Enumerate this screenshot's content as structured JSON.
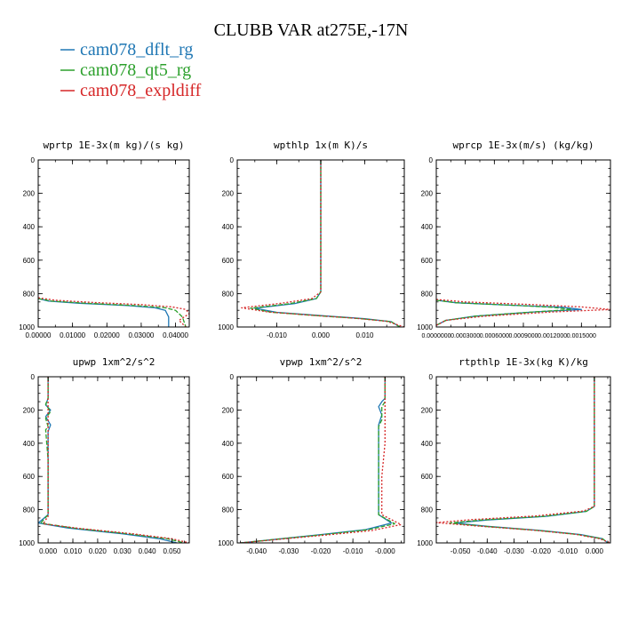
{
  "title": "CLUBB VAR at275E,-17N",
  "legend": [
    {
      "name": "cam078_dflt_rg",
      "color": "#1f77b4",
      "dash": "solid"
    },
    {
      "name": "cam078_qt5_rg",
      "color": "#2ca02c",
      "dash": "dashed"
    },
    {
      "name": "cam078_expldiff",
      "color": "#d62728",
      "dash": "dotted"
    }
  ],
  "chart_data": [
    {
      "type": "line",
      "title": "wprtp  1E-3x(m kg)/(s kg)",
      "xlim": [
        0,
        0.044
      ],
      "ylim": [
        1000,
        0
      ],
      "xticks": [
        0,
        0.01,
        0.02,
        0.03,
        0.04
      ],
      "xtick_labels": [
        "0.00000",
        "0.01000",
        "0.02000",
        "0.03000",
        "0.04000"
      ],
      "yticks": [
        0,
        200,
        400,
        600,
        800,
        1000
      ],
      "grid": false,
      "series": [
        {
          "name": "cam078_dflt_rg",
          "x": [
            0,
            0.003,
            0.012,
            0.026,
            0.034,
            0.037,
            0.038,
            0.038
          ],
          "y": [
            830,
            845,
            858,
            872,
            885,
            900,
            940,
            1000
          ]
        },
        {
          "name": "cam078_qt5_rg",
          "x": [
            0,
            0.004,
            0.014,
            0.028,
            0.037,
            0.04,
            0.042,
            0.043
          ],
          "y": [
            830,
            845,
            858,
            872,
            885,
            900,
            940,
            1000
          ]
        },
        {
          "name": "cam078_expldiff",
          "x": [
            0,
            0.005,
            0.016,
            0.03,
            0.039,
            0.043,
            0.044,
            0.041,
            0.043
          ],
          "y": [
            825,
            840,
            853,
            866,
            880,
            895,
            920,
            960,
            1000
          ]
        }
      ]
    },
    {
      "type": "line",
      "title": "wpthlp  1x(m K)/s",
      "xlim": [
        -0.019,
        0.019
      ],
      "ylim": [
        1000,
        0
      ],
      "xticks": [
        -0.01,
        0,
        0.01
      ],
      "xtick_labels": [
        "-0.010",
        "0.000",
        "0.010"
      ],
      "yticks": [
        0,
        200,
        400,
        600,
        800,
        1000
      ],
      "grid": false,
      "series": [
        {
          "name": "cam078_dflt_rg",
          "x": [
            0,
            0,
            0,
            -0.001,
            -0.006,
            -0.015,
            -0.01,
            0.0,
            0.01,
            0.016,
            0.018
          ],
          "y": [
            0,
            400,
            790,
            830,
            860,
            888,
            912,
            932,
            950,
            968,
            1000
          ]
        },
        {
          "name": "cam078_qt5_rg",
          "x": [
            0,
            0,
            0,
            -0.001,
            -0.007,
            -0.016,
            -0.011,
            -0.001,
            0.009,
            0.016,
            0.018
          ],
          "y": [
            0,
            400,
            790,
            830,
            860,
            888,
            912,
            932,
            950,
            968,
            1000
          ]
        },
        {
          "name": "cam078_expldiff",
          "x": [
            0,
            0,
            0,
            -0.002,
            -0.009,
            -0.018,
            -0.012,
            -0.002,
            0.008,
            0.015,
            0.019
          ],
          "y": [
            0,
            400,
            790,
            830,
            858,
            885,
            910,
            930,
            948,
            966,
            1000
          ]
        }
      ]
    },
    {
      "type": "line",
      "title": "wprcp  1E-3x(m/s) (kg/kg)",
      "xlim": [
        0,
        0.0018
      ],
      "ylim": [
        1000,
        0
      ],
      "xticks": [
        0,
        0.0003,
        0.0006,
        0.0009,
        0.0012,
        0.0015
      ],
      "xtick_labels": [
        "0.0000000",
        "0.0003000",
        "0.0006000",
        "0.0009000",
        "0.0012000",
        "0.0015000"
      ],
      "yticks": [
        0,
        200,
        400,
        600,
        800,
        1000
      ],
      "grid": false,
      "series": [
        {
          "name": "cam078_dflt_rg",
          "x": [
            0,
            0.0002,
            0.0008,
            0.0013,
            0.0015,
            0.001,
            0.0004,
            0.0001,
            0
          ],
          "y": [
            840,
            855,
            870,
            882,
            895,
            910,
            935,
            960,
            990
          ]
        },
        {
          "name": "cam078_qt5_rg",
          "x": [
            0,
            0.0002,
            0.0008,
            0.0012,
            0.0014,
            0.001,
            0.0004,
            0.0001,
            0
          ],
          "y": [
            840,
            855,
            870,
            882,
            895,
            910,
            935,
            960,
            990
          ]
        },
        {
          "name": "cam078_expldiff",
          "x": [
            0,
            0.0003,
            0.001,
            0.0015,
            0.0018,
            0.0012,
            0.0005,
            0.0001,
            0
          ],
          "y": [
            835,
            850,
            866,
            880,
            895,
            910,
            935,
            960,
            990
          ]
        }
      ]
    },
    {
      "type": "line",
      "title": "upwp  1xm^2/s^2",
      "xlim": [
        -0.004,
        0.057
      ],
      "ylim": [
        1000,
        0
      ],
      "xticks": [
        0,
        0.01,
        0.02,
        0.03,
        0.04,
        0.05
      ],
      "xtick_labels": [
        "0.000",
        "0.010",
        "0.020",
        "0.030",
        "0.040",
        "0.050"
      ],
      "yticks": [
        0,
        200,
        400,
        600,
        800,
        1000
      ],
      "grid": false,
      "series": [
        {
          "name": "cam078_dflt_rg",
          "x": [
            0,
            0,
            -0.001,
            0.001,
            -0.001,
            0.001,
            0,
            0,
            0,
            -0.004,
            0.008,
            0.03,
            0.045,
            0.052
          ],
          "y": [
            0,
            130,
            170,
            200,
            240,
            290,
            330,
            500,
            830,
            880,
            910,
            945,
            975,
            1000
          ]
        },
        {
          "name": "cam078_qt5_rg",
          "x": [
            0,
            0,
            -0.001,
            0.001,
            -0.001,
            0,
            -0.001,
            0,
            0,
            -0.003,
            0.01,
            0.032,
            0.048,
            0.055
          ],
          "y": [
            0,
            130,
            165,
            210,
            250,
            300,
            320,
            500,
            830,
            880,
            910,
            945,
            975,
            1000
          ]
        },
        {
          "name": "cam078_expldiff",
          "x": [
            0,
            0,
            0,
            0,
            0,
            -0.002,
            0.012,
            0.034,
            0.05,
            0.057
          ],
          "y": [
            0,
            200,
            400,
            600,
            840,
            885,
            912,
            945,
            975,
            1000
          ]
        }
      ]
    },
    {
      "type": "line",
      "title": "vpwp  1xm^2/s^2",
      "xlim": [
        -0.046,
        0.006
      ],
      "ylim": [
        1000,
        0
      ],
      "xticks": [
        -0.04,
        -0.03,
        -0.02,
        -0.01,
        0
      ],
      "xtick_labels": [
        "-0.040",
        "-0.030",
        "-0.020",
        "-0.010",
        "-0.000"
      ],
      "yticks": [
        0,
        200,
        400,
        600,
        800,
        1000
      ],
      "grid": false,
      "series": [
        {
          "name": "cam078_dflt_rg",
          "x": [
            0,
            0,
            -0.001,
            -0.002,
            -0.001,
            -0.002,
            -0.002,
            -0.002,
            0.002,
            -0.006,
            -0.02,
            -0.035,
            -0.045
          ],
          "y": [
            0,
            130,
            150,
            180,
            230,
            290,
            320,
            830,
            880,
            920,
            950,
            980,
            1000
          ]
        },
        {
          "name": "cam078_qt5_rg",
          "x": [
            0,
            0,
            -0.001,
            -0.001,
            -0.001,
            -0.002,
            -0.002,
            0.003,
            -0.005,
            -0.019,
            -0.035,
            -0.045
          ],
          "y": [
            0,
            150,
            180,
            220,
            260,
            300,
            830,
            885,
            920,
            950,
            980,
            1000
          ]
        },
        {
          "name": "cam078_expldiff",
          "x": [
            0,
            0,
            0,
            -0.001,
            -0.001,
            0.005,
            -0.004,
            -0.018,
            -0.034,
            -0.045
          ],
          "y": [
            0,
            200,
            400,
            600,
            830,
            890,
            925,
            952,
            980,
            1000
          ]
        }
      ]
    },
    {
      "type": "line",
      "title": "rtpthlp  1E-3x(kg K)/kg",
      "xlim": [
        -0.059,
        0.006
      ],
      "ylim": [
        1000,
        0
      ],
      "xticks": [
        -0.05,
        -0.04,
        -0.03,
        -0.02,
        -0.01,
        0
      ],
      "xtick_labels": [
        "-0.050",
        "-0.040",
        "-0.030",
        "-0.020",
        "-0.010",
        "0.000"
      ],
      "yticks": [
        0,
        200,
        400,
        600,
        800,
        1000
      ],
      "grid": false,
      "series": [
        {
          "name": "cam078_dflt_rg",
          "x": [
            0,
            0,
            0,
            -0.003,
            -0.018,
            -0.04,
            -0.052,
            -0.04,
            -0.02,
            -0.005,
            0.003,
            0.005
          ],
          "y": [
            0,
            400,
            780,
            810,
            840,
            862,
            880,
            900,
            925,
            950,
            975,
            1000
          ]
        },
        {
          "name": "cam078_qt5_rg",
          "x": [
            0,
            0,
            0,
            -0.003,
            -0.019,
            -0.042,
            -0.054,
            -0.041,
            -0.021,
            -0.006,
            0.003,
            0.005
          ],
          "y": [
            0,
            400,
            780,
            810,
            840,
            862,
            880,
            900,
            925,
            950,
            975,
            1000
          ]
        },
        {
          "name": "cam078_expldiff",
          "x": [
            0,
            0,
            0,
            -0.004,
            -0.022,
            -0.046,
            -0.059,
            -0.044,
            -0.023,
            -0.007,
            0.002,
            0.006
          ],
          "y": [
            0,
            400,
            780,
            808,
            838,
            860,
            878,
            898,
            923,
            948,
            975,
            1000
          ]
        }
      ]
    }
  ]
}
